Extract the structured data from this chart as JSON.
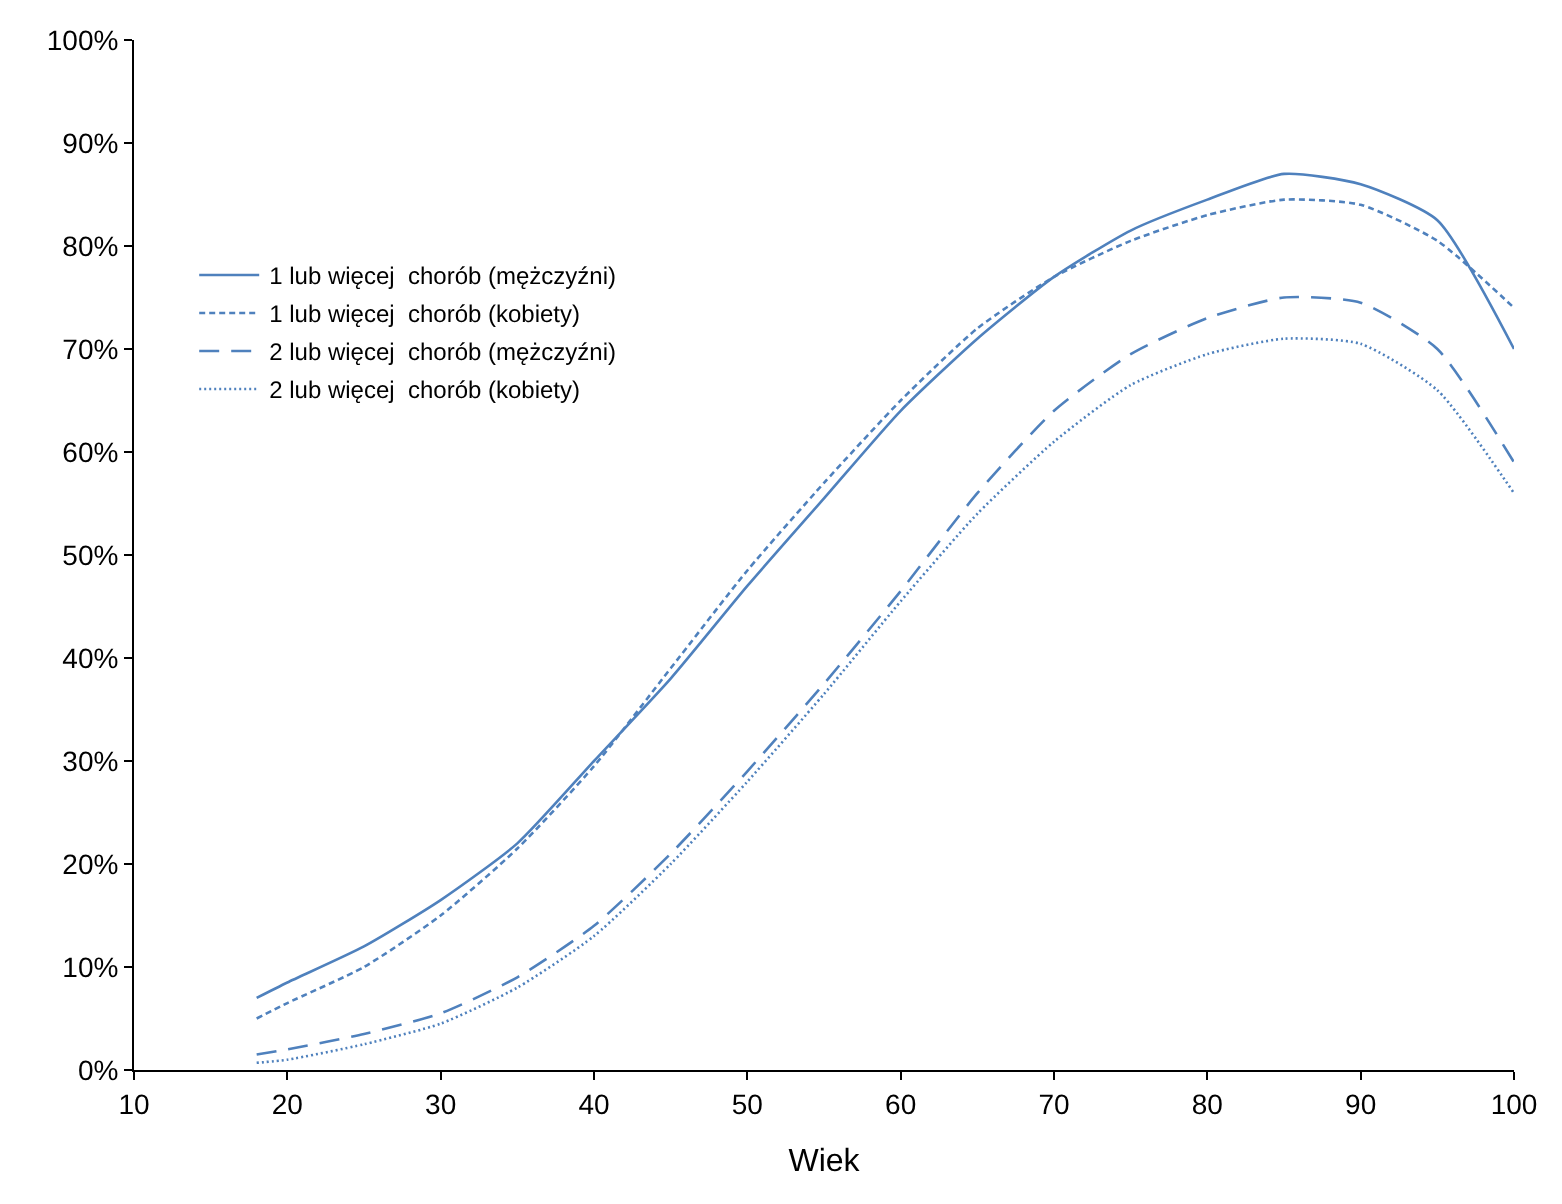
{
  "chart_data": {
    "type": "line",
    "xlabel": "Wiek",
    "x": [
      18,
      20,
      25,
      30,
      35,
      40,
      45,
      50,
      55,
      60,
      65,
      70,
      75,
      80,
      85,
      90,
      95,
      100
    ],
    "series": [
      {
        "name": "1 lub więcej  chorób (mężczyźni)",
        "color": "#4f81bd",
        "line_style": "solid",
        "values": [
          7,
          8.5,
          12,
          16.5,
          22,
          30,
          38,
          47,
          55.5,
          64,
          71,
          77,
          81.5,
          84.5,
          87,
          86,
          82.5,
          70
        ]
      },
      {
        "name": "1 lub więcej  chorób (kobiety)",
        "color": "#4f81bd",
        "line_style": "dashed",
        "values": [
          5,
          6.5,
          10,
          15,
          21.5,
          29.5,
          39,
          48.5,
          57,
          65,
          72,
          77,
          80.5,
          83,
          84.5,
          84,
          80.5,
          74
        ]
      },
      {
        "name": "2 lub więcej  chorób (mężczyźni)",
        "color": "#4f81bd",
        "line_style": "dashed",
        "values": [
          1.5,
          2,
          3.5,
          5.5,
          9,
          14,
          21,
          29,
          37.5,
          46.5,
          56,
          64,
          69.5,
          73,
          75,
          74.5,
          70,
          59
        ]
      },
      {
        "name": "2 lub więcej  chorób (kobiety)",
        "color": "#4f81bd",
        "line_style": "dotted",
        "values": [
          0.7,
          1,
          2.5,
          4.5,
          8,
          13,
          20,
          28,
          36.5,
          45.5,
          54,
          61,
          66.5,
          69.5,
          71,
          70.5,
          66,
          56
        ]
      }
    ],
    "xlim": [
      10,
      100
    ],
    "xticks": [
      10,
      20,
      30,
      40,
      50,
      60,
      70,
      80,
      90,
      100
    ],
    "ylim": [
      0,
      100
    ],
    "yticks": [
      {
        "value": 0,
        "label": "0%"
      },
      {
        "value": 10,
        "label": "10%"
      },
      {
        "value": 20,
        "label": "20%"
      },
      {
        "value": 30,
        "label": "30%"
      },
      {
        "value": 40,
        "label": "40%"
      },
      {
        "value": 50,
        "label": "50%"
      },
      {
        "value": 60,
        "label": "60%"
      },
      {
        "value": 70,
        "label": "70%"
      },
      {
        "value": 80,
        "label": "80%"
      },
      {
        "value": 90,
        "label": "90%"
      },
      {
        "value": 100,
        "label": "100%"
      }
    ],
    "legend": "top left",
    "marker": "none"
  }
}
